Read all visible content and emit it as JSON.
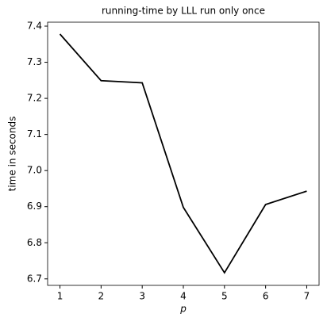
{
  "chart_data": {
    "type": "line",
    "title": "running-time by LLL run only once",
    "x_label": "p",
    "y_label": "time in seconds",
    "x": [
      1,
      2,
      3,
      4,
      5,
      6,
      7
    ],
    "series": [
      {
        "color": "#000000",
        "values": [
          7.378,
          7.249,
          7.243,
          6.898,
          6.717,
          6.906,
          6.943
        ]
      }
    ],
    "xlim": [
      0.7,
      7.3
    ],
    "xticks": [
      1,
      2,
      3,
      4,
      5,
      6,
      7
    ],
    "ylim": [
      6.682,
      7.411
    ],
    "yticks": [
      6.7,
      6.8,
      6.9,
      {
        "value": 7,
        "label": "7.0"
      },
      7.1,
      7.2,
      7.3,
      7.4
    ]
  }
}
